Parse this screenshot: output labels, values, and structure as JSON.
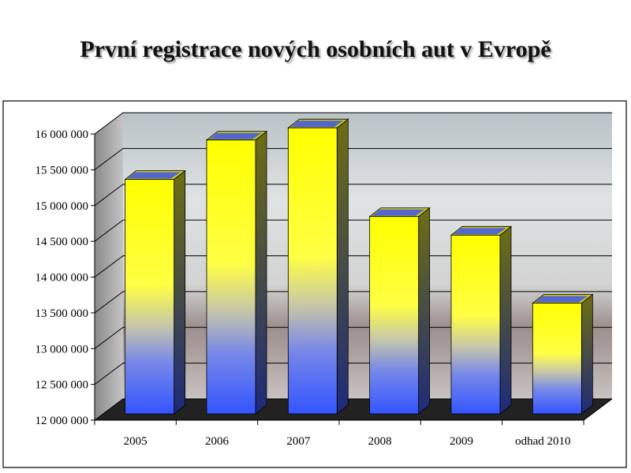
{
  "chart_data": {
    "type": "bar",
    "title": "První registrace nových osobních aut v Evropě",
    "xlabel": "",
    "ylabel": "",
    "categories": [
      "2005",
      "2006",
      "2007",
      "2008",
      "2009",
      "odhad 2010"
    ],
    "values": [
      15300000,
      15850000,
      16020000,
      14780000,
      14520000,
      13570000
    ],
    "ylim": [
      12000000,
      16000000
    ],
    "yticks": [
      12000000,
      12500000,
      13000000,
      13500000,
      14000000,
      14500000,
      15000000,
      15500000,
      16000000
    ],
    "ytick_labels": [
      "12 000 000",
      "12 500 000",
      "13 000 000",
      "13 500 000",
      "14 000 000",
      "14 500 000",
      "15 000 000",
      "15 500 000",
      "16 000 000"
    ],
    "grid": true,
    "legend": "none",
    "colors": {
      "bar_top": "#ffff00",
      "bar_bottom": "#3355ff",
      "bar_side": "#2a3a88",
      "bar_cap": "#6a6a10",
      "floor": "#222222"
    }
  }
}
